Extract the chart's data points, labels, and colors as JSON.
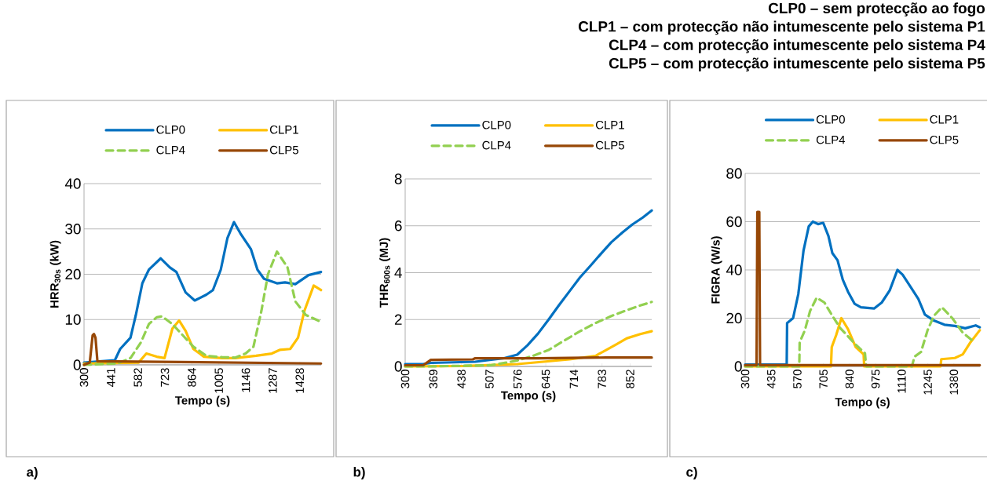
{
  "chart_data": [
    {
      "type": "line",
      "xlabel": "Tempo (s)",
      "ylabel": "HRR$_{30s}$ (kW)",
      "xlim": [
        300,
        1540
      ],
      "ylim": [
        0,
        40
      ],
      "xticks": [
        300,
        441,
        582,
        723,
        864,
        1005,
        1146,
        1287,
        1428
      ],
      "yticks": [
        0,
        10,
        20,
        30,
        40
      ],
      "grid": "y",
      "legend": "top",
      "annotations": [
        "a)"
      ],
      "series": [
        {
          "name": "CLP0",
          "color": "#0070c0",
          "line_style": "solid",
          "x": [
            300,
            461,
            489,
            543,
            571,
            605,
            639,
            701,
            749,
            783,
            831,
            879,
            940,
            974,
            1015,
            1050,
            1084,
            1118,
            1173,
            1207,
            1241,
            1309,
            1351,
            1405,
            1474,
            1539
          ],
          "values": [
            0.5,
            1,
            3.5,
            6,
            11,
            18,
            21,
            23.5,
            21.5,
            20.5,
            16,
            14.2,
            15.5,
            16.5,
            21,
            28,
            31.5,
            29,
            25.5,
            21,
            19,
            18,
            18.2,
            17.8,
            19.8,
            20.5
          ]
        },
        {
          "name": "CLP1",
          "color": "#ffc000",
          "line_style": "solid",
          "x": [
            300,
            585,
            626,
            680,
            721,
            762,
            797,
            831,
            872,
            927,
            1022,
            1091,
            1200,
            1282,
            1323,
            1378,
            1419,
            1453,
            1501,
            1539
          ],
          "values": [
            0.3,
            0.5,
            2.5,
            1.8,
            1.5,
            8,
            9.8,
            7.5,
            3.5,
            1.8,
            1.5,
            1.5,
            2,
            2.5,
            3.3,
            3.5,
            6,
            12,
            17.5,
            16.5
          ]
        },
        {
          "name": "CLP4",
          "color": "#92d050",
          "line_style": "dashed",
          "x": [
            300,
            475,
            543,
            598,
            639,
            680,
            708,
            762,
            817,
            872,
            940,
            1022,
            1091,
            1145,
            1186,
            1228,
            1262,
            1309,
            1364,
            1405,
            1460,
            1539
          ],
          "values": [
            0,
            0.3,
            1.5,
            5,
            9,
            10.5,
            10.7,
            9,
            6.5,
            4,
            2,
            1.7,
            1.6,
            2.5,
            4,
            12,
            20,
            25,
            21.5,
            14,
            11,
            9.5
          ]
        },
        {
          "name": "CLP5",
          "color": "#974706",
          "line_style": "solid",
          "x": [
            300,
            330,
            345,
            352,
            360,
            370,
            1539
          ],
          "values": [
            0,
            0.5,
            6.5,
            6.8,
            6,
            0.8,
            0.3
          ]
        }
      ]
    },
    {
      "type": "line",
      "xlabel": "Tempo (s)",
      "ylabel": "THR$_{600s}$ (MJ)",
      "xlim": [
        300,
        905
      ],
      "ylim": [
        0,
        8
      ],
      "xticks": [
        300,
        369,
        438,
        507,
        576,
        645,
        714,
        783,
        852
      ],
      "yticks": [
        0,
        2,
        4,
        6,
        8
      ],
      "grid": "y",
      "legend": "top",
      "annotations": [
        "b)"
      ],
      "series": [
        {
          "name": "CLP0",
          "color": "#0070c0",
          "line_style": "solid",
          "x": [
            300,
            344,
            363,
            472,
            543,
            575,
            600,
            626,
            652,
            677,
            703,
            729,
            755,
            780,
            806,
            832,
            857,
            883,
            905
          ],
          "values": [
            0.1,
            0.1,
            0.15,
            0.2,
            0.35,
            0.5,
            0.9,
            1.4,
            2.0,
            2.6,
            3.2,
            3.8,
            4.3,
            4.8,
            5.3,
            5.7,
            6.05,
            6.35,
            6.65
          ]
        },
        {
          "name": "CLP1",
          "color": "#ffc000",
          "line_style": "solid",
          "x": [
            300,
            446,
            575,
            639,
            703,
            767,
            793,
            819,
            844,
            877,
            905
          ],
          "values": [
            0,
            0.02,
            0.1,
            0.2,
            0.3,
            0.45,
            0.7,
            0.95,
            1.2,
            1.38,
            1.5
          ]
        },
        {
          "name": "CLP4",
          "color": "#92d050",
          "line_style": "dashed",
          "x": [
            300,
            357,
            510,
            575,
            613,
            652,
            690,
            729,
            767,
            806,
            844,
            877,
            905
          ],
          "values": [
            0,
            0,
            0.05,
            0.25,
            0.45,
            0.7,
            1.1,
            1.5,
            1.85,
            2.15,
            2.4,
            2.6,
            2.75
          ]
        },
        {
          "name": "CLP5",
          "color": "#974706",
          "line_style": "solid",
          "x": [
            300,
            344,
            363,
            466,
            472,
            626,
            793,
            905
          ],
          "values": [
            0.05,
            0.05,
            0.28,
            0.3,
            0.35,
            0.35,
            0.38,
            0.38
          ]
        }
      ]
    },
    {
      "type": "line",
      "xlabel": "Tempo (s)",
      "ylabel": "FIGRA (W/s)",
      "xlim": [
        300,
        1515
      ],
      "ylim": [
        0,
        80
      ],
      "xticks": [
        300,
        435,
        570,
        705,
        840,
        975,
        1110,
        1245,
        1380
      ],
      "yticks": [
        0,
        20,
        40,
        60,
        80
      ],
      "grid": "y",
      "legend": "top",
      "annotations": [
        "c)",
        "CLP0 – sem protecção ao fogo",
        "CLP1 – com protecção não intumescente pelo sistema P1",
        "CLP4 – com protecção intumescente pelo sistema P4",
        "CLP5 – com protecção intumescente pelo sistema P5"
      ],
      "series": [
        {
          "name": "CLP0",
          "color": "#0070c0",
          "line_style": "solid",
          "x": [
            300,
            515,
            517,
            548,
            575,
            602,
            629,
            650,
            677,
            704,
            731,
            751,
            778,
            805,
            832,
            866,
            899,
            967,
            1007,
            1048,
            1088,
            1115,
            1156,
            1196,
            1230,
            1277,
            1331,
            1385,
            1439,
            1493,
            1514
          ],
          "values": [
            0.8,
            0.8,
            18,
            20,
            30,
            48,
            58,
            60,
            59,
            59.5,
            54,
            47,
            44,
            36,
            31,
            26,
            24.5,
            24,
            26.5,
            31.5,
            40,
            38,
            33,
            28,
            21.5,
            19,
            17.3,
            16.8,
            15.8,
            17,
            16.2
          ]
        },
        {
          "name": "CLP1",
          "color": "#ffc000",
          "line_style": "solid",
          "x": [
            300,
            744,
            748,
            771,
            798,
            832,
            872,
            913,
            916,
            1311,
            1315,
            1385,
            1426,
            1466,
            1514
          ],
          "values": [
            0,
            0,
            8,
            13,
            20,
            15.5,
            8,
            5,
            0,
            0,
            3,
            3.5,
            5,
            10,
            15
          ]
        },
        {
          "name": "CLP4",
          "color": "#92d050",
          "line_style": "dashed",
          "x": [
            300,
            580,
            582,
            609,
            636,
            670,
            710,
            751,
            791,
            832,
            872,
            920,
            926,
            1163,
            1176,
            1210,
            1244,
            1277,
            1318,
            1372,
            1426,
            1487
          ],
          "values": [
            0,
            0,
            10,
            15,
            23,
            28.5,
            26.5,
            21,
            16,
            12.5,
            9,
            5.5,
            0,
            0,
            4,
            6,
            15,
            21,
            24.5,
            20,
            14,
            10
          ]
        },
        {
          "name": "CLP5",
          "color": "#974706",
          "line_style": "solid",
          "x": [
            300,
            359,
            363,
            373,
            377,
            1514
          ],
          "values": [
            0.5,
            0.5,
            64,
            64,
            0.5,
            0.5
          ]
        }
      ]
    }
  ]
}
